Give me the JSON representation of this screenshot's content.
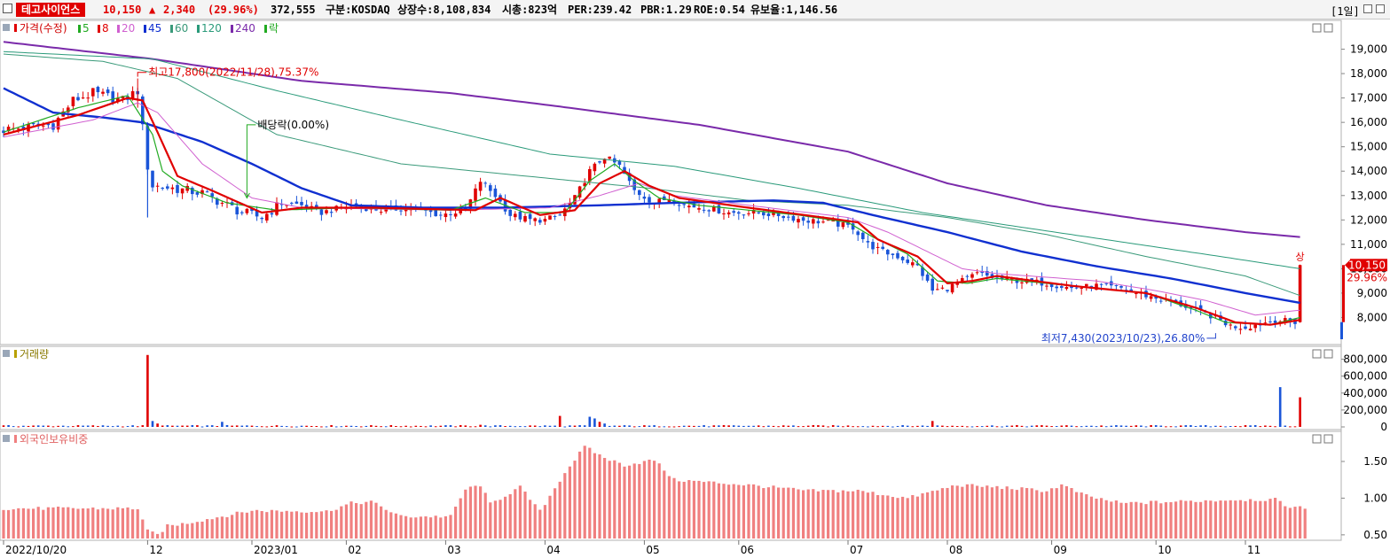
{
  "header": {
    "name": "테고사이언스",
    "price": "10,150",
    "change_arrow": "▲",
    "change": "2,340",
    "change_pct": "(29.96%)",
    "volume": "372,555",
    "market": "구분:KOSDAQ",
    "shares": "상장수:8,108,834",
    "mcap": "시총:823억",
    "per": "PER:239.42",
    "pbr": "PBR:1.29",
    "roe": "ROE:0.54",
    "float": "유보율:1,146.56",
    "period": "[1일]"
  },
  "price_legend": {
    "price_label": "가격(수정)",
    "ma_labels": [
      "5",
      "8",
      "20",
      "45",
      "60",
      "120",
      "240"
    ],
    "ex_label": "락"
  },
  "volume_legend": "거래량",
  "foreign_legend": "외국인보유비중",
  "annotations": {
    "high": "최고17,800(2022/11/28),75.37%",
    "dividend": "배당락(0.00%)",
    "low": "최저7,430(2023/10/23),26.80%",
    "upper_limit": "상",
    "current_price": "10,150",
    "current_pct": "29.96%"
  },
  "colors": {
    "up": "#e00000",
    "down": "#1a55d8",
    "ma5": "#22aa22",
    "ma8": "#e00000",
    "ma20": "#d060d0",
    "ma45": "#1030d0",
    "ma60": "#3a9a7a",
    "ma120": "#2a9a7a",
    "ma240": "#7a2aaa",
    "foreign_bar": "#f08080"
  },
  "chart_data": [
    {
      "type": "candlestick",
      "title": "가격(수정)",
      "ylim": [
        7000,
        20000
      ],
      "y_ticks": [
        "19,000",
        "18,000",
        "17,000",
        "16,000",
        "15,000",
        "14,000",
        "13,000",
        "12,000",
        "11,000",
        "10,000",
        "9,000",
        "8,000"
      ],
      "y_tick_values": [
        19000,
        18000,
        17000,
        16000,
        15000,
        14000,
        13000,
        12000,
        11000,
        10000,
        9000,
        8000
      ],
      "x_labels": [
        "2022/10/20",
        "12",
        "2023/01",
        "02",
        "03",
        "04",
        "05",
        "06",
        "07",
        "08",
        "09",
        "10",
        "11"
      ],
      "x_label_index": [
        0,
        29,
        50,
        69,
        89,
        109,
        129,
        148,
        170,
        190,
        211,
        232,
        250
      ],
      "bars": 264,
      "close_anchors": [
        [
          0,
          15700
        ],
        [
          10,
          15900
        ],
        [
          14,
          16900
        ],
        [
          18,
          17200
        ],
        [
          24,
          16900
        ],
        [
          27,
          17300
        ],
        [
          29,
          14200
        ],
        [
          30,
          13400
        ],
        [
          34,
          13300
        ],
        [
          40,
          13100
        ],
        [
          44,
          12700
        ],
        [
          48,
          12300
        ],
        [
          52,
          12100
        ],
        [
          56,
          12700
        ],
        [
          60,
          12600
        ],
        [
          64,
          12300
        ],
        [
          70,
          12600
        ],
        [
          76,
          12400
        ],
        [
          82,
          12500
        ],
        [
          88,
          12200
        ],
        [
          93,
          12400
        ],
        [
          96,
          13600
        ],
        [
          99,
          13000
        ],
        [
          102,
          12200
        ],
        [
          106,
          12000
        ],
        [
          109,
          12000
        ],
        [
          112,
          12200
        ],
        [
          115,
          12900
        ],
        [
          118,
          14000
        ],
        [
          121,
          14600
        ],
        [
          124,
          14200
        ],
        [
          127,
          13200
        ],
        [
          131,
          12700
        ],
        [
          134,
          12900
        ],
        [
          137,
          12600
        ],
        [
          141,
          12500
        ],
        [
          146,
          12300
        ],
        [
          151,
          12300
        ],
        [
          156,
          12200
        ],
        [
          161,
          12000
        ],
        [
          166,
          11900
        ],
        [
          171,
          11700
        ],
        [
          174,
          11000
        ],
        [
          177,
          10700
        ],
        [
          180,
          10500
        ],
        [
          184,
          10100
        ],
        [
          187,
          9100
        ],
        [
          190,
          9200
        ],
        [
          193,
          9500
        ],
        [
          196,
          9800
        ],
        [
          200,
          9600
        ],
        [
          205,
          9500
        ],
        [
          210,
          9400
        ],
        [
          215,
          9200
        ],
        [
          220,
          9300
        ],
        [
          225,
          9200
        ],
        [
          228,
          9000
        ],
        [
          232,
          8800
        ],
        [
          236,
          8600
        ],
        [
          240,
          8300
        ],
        [
          244,
          8000
        ],
        [
          247,
          7650
        ],
        [
          250,
          7600
        ],
        [
          253,
          7750
        ],
        [
          256,
          7900
        ],
        [
          260,
          7810
        ],
        [
          261,
          10150
        ]
      ],
      "ma_anchors": {
        "ma5": [
          [
            0,
            15600
          ],
          [
            15,
            16600
          ],
          [
            25,
            17100
          ],
          [
            30,
            15500
          ],
          [
            32,
            14000
          ],
          [
            36,
            13400
          ],
          [
            45,
            12700
          ],
          [
            55,
            12400
          ],
          [
            70,
            12500
          ],
          [
            90,
            12400
          ],
          [
            97,
            12900
          ],
          [
            105,
            12300
          ],
          [
            113,
            12300
          ],
          [
            118,
            13600
          ],
          [
            123,
            14300
          ],
          [
            127,
            13600
          ],
          [
            132,
            12900
          ],
          [
            140,
            12600
          ],
          [
            150,
            12400
          ],
          [
            160,
            12200
          ],
          [
            170,
            11900
          ],
          [
            175,
            11300
          ],
          [
            182,
            10600
          ],
          [
            188,
            9500
          ],
          [
            194,
            9400
          ],
          [
            200,
            9600
          ],
          [
            215,
            9300
          ],
          [
            230,
            9000
          ],
          [
            240,
            8300
          ],
          [
            246,
            7800
          ],
          [
            255,
            7700
          ],
          [
            261,
            8000
          ]
        ],
        "ma8": [
          [
            0,
            15500
          ],
          [
            15,
            16300
          ],
          [
            25,
            17000
          ],
          [
            28,
            16900
          ],
          [
            31,
            15600
          ],
          [
            35,
            13800
          ],
          [
            42,
            13200
          ],
          [
            52,
            12300
          ],
          [
            60,
            12500
          ],
          [
            75,
            12500
          ],
          [
            95,
            12400
          ],
          [
            100,
            12900
          ],
          [
            108,
            12200
          ],
          [
            115,
            12400
          ],
          [
            120,
            13500
          ],
          [
            125,
            14000
          ],
          [
            130,
            13400
          ],
          [
            136,
            12900
          ],
          [
            150,
            12500
          ],
          [
            165,
            12100
          ],
          [
            172,
            11900
          ],
          [
            176,
            11200
          ],
          [
            184,
            10500
          ],
          [
            190,
            9400
          ],
          [
            195,
            9500
          ],
          [
            200,
            9700
          ],
          [
            215,
            9300
          ],
          [
            230,
            9000
          ],
          [
            240,
            8400
          ],
          [
            248,
            7800
          ],
          [
            255,
            7700
          ],
          [
            261,
            7900
          ]
        ],
        "ma20": [
          [
            0,
            15400
          ],
          [
            18,
            16100
          ],
          [
            27,
            16800
          ],
          [
            31,
            16400
          ],
          [
            40,
            14300
          ],
          [
            50,
            12900
          ],
          [
            60,
            12500
          ],
          [
            90,
            12400
          ],
          [
            110,
            12500
          ],
          [
            120,
            13000
          ],
          [
            128,
            13500
          ],
          [
            135,
            13000
          ],
          [
            150,
            12600
          ],
          [
            170,
            12100
          ],
          [
            178,
            11500
          ],
          [
            186,
            10700
          ],
          [
            193,
            10000
          ],
          [
            200,
            9800
          ],
          [
            220,
            9500
          ],
          [
            232,
            9100
          ],
          [
            242,
            8700
          ],
          [
            252,
            8100
          ],
          [
            261,
            8300
          ]
        ],
        "ma45": [
          [
            0,
            17400
          ],
          [
            10,
            16400
          ],
          [
            20,
            16200
          ],
          [
            28,
            16000
          ],
          [
            40,
            15200
          ],
          [
            50,
            14300
          ],
          [
            60,
            13300
          ],
          [
            70,
            12600
          ],
          [
            85,
            12500
          ],
          [
            100,
            12500
          ],
          [
            120,
            12600
          ],
          [
            135,
            12700
          ],
          [
            155,
            12800
          ],
          [
            165,
            12700
          ],
          [
            175,
            12200
          ],
          [
            190,
            11500
          ],
          [
            205,
            10700
          ],
          [
            220,
            10100
          ],
          [
            235,
            9600
          ],
          [
            250,
            9000
          ],
          [
            261,
            8600
          ]
        ],
        "ma60": [
          [
            0,
            18800
          ],
          [
            20,
            18500
          ],
          [
            35,
            17800
          ],
          [
            55,
            15500
          ],
          [
            80,
            14300
          ],
          [
            110,
            13700
          ],
          [
            130,
            13300
          ],
          [
            150,
            12800
          ],
          [
            170,
            12600
          ],
          [
            190,
            12100
          ],
          [
            210,
            11400
          ],
          [
            230,
            10500
          ],
          [
            250,
            9700
          ],
          [
            261,
            8900
          ]
        ],
        "ma120": [
          [
            0,
            18900
          ],
          [
            30,
            18600
          ],
          [
            55,
            17300
          ],
          [
            80,
            16100
          ],
          [
            110,
            14700
          ],
          [
            135,
            14200
          ],
          [
            160,
            13300
          ],
          [
            185,
            12300
          ],
          [
            205,
            11700
          ],
          [
            225,
            11100
          ],
          [
            245,
            10500
          ],
          [
            261,
            10000
          ]
        ],
        "ma240": [
          [
            0,
            19300
          ],
          [
            30,
            18600
          ],
          [
            60,
            17700
          ],
          [
            90,
            17200
          ],
          [
            110,
            16700
          ],
          [
            140,
            15900
          ],
          [
            170,
            14800
          ],
          [
            190,
            13500
          ],
          [
            210,
            12600
          ],
          [
            230,
            12000
          ],
          [
            250,
            11500
          ],
          [
            261,
            11300
          ]
        ]
      },
      "highlight": {
        "high_index": 27,
        "high_value": 17800,
        "low_index": 244,
        "low_value": 7430,
        "dividend_index": 49
      }
    },
    {
      "type": "bar",
      "title": "거래량",
      "ylim": [
        0,
        900000
      ],
      "y_ticks": [
        "800,000",
        "600,000",
        "400,000",
        "200,000",
        "0"
      ],
      "y_tick_values": [
        800000,
        600000,
        400000,
        200000,
        0
      ],
      "spikes": [
        [
          29,
          850000
        ],
        [
          30,
          70000
        ],
        [
          31,
          40000
        ],
        [
          44,
          60000
        ],
        [
          96,
          25000
        ],
        [
          112,
          130000
        ],
        [
          118,
          120000
        ],
        [
          119,
          100000
        ],
        [
          120,
          60000
        ],
        [
          121,
          40000
        ],
        [
          187,
          70000
        ],
        [
          257,
          470000
        ],
        [
          261,
          350000
        ]
      ],
      "baseline": 12000
    },
    {
      "type": "bar",
      "title": "외국인보유비중",
      "ylim": [
        0.45,
        1.85
      ],
      "y_ticks": [
        "1.50",
        "1.00",
        "0.50"
      ],
      "y_tick_values": [
        1.5,
        1.0,
        0.5
      ],
      "anchors": [
        [
          0,
          0.86
        ],
        [
          27,
          0.86
        ],
        [
          29,
          0.55
        ],
        [
          31,
          0.5
        ],
        [
          33,
          0.62
        ],
        [
          36,
          0.65
        ],
        [
          50,
          0.83
        ],
        [
          65,
          0.82
        ],
        [
          70,
          0.93
        ],
        [
          74,
          0.95
        ],
        [
          80,
          0.75
        ],
        [
          90,
          0.75
        ],
        [
          93,
          1.12
        ],
        [
          96,
          1.18
        ],
        [
          98,
          0.92
        ],
        [
          104,
          1.15
        ],
        [
          108,
          0.82
        ],
        [
          113,
          1.35
        ],
        [
          117,
          1.7
        ],
        [
          121,
          1.55
        ],
        [
          125,
          1.45
        ],
        [
          131,
          1.52
        ],
        [
          135,
          1.25
        ],
        [
          150,
          1.18
        ],
        [
          162,
          1.1
        ],
        [
          172,
          1.1
        ],
        [
          182,
          1.0
        ],
        [
          192,
          1.18
        ],
        [
          200,
          1.15
        ],
        [
          210,
          1.1
        ],
        [
          213,
          1.18
        ],
        [
          218,
          1.03
        ],
        [
          225,
          0.93
        ],
        [
          235,
          0.95
        ],
        [
          248,
          0.98
        ],
        [
          256,
          0.98
        ],
        [
          258,
          0.9
        ],
        [
          262,
          0.86
        ]
      ]
    }
  ]
}
